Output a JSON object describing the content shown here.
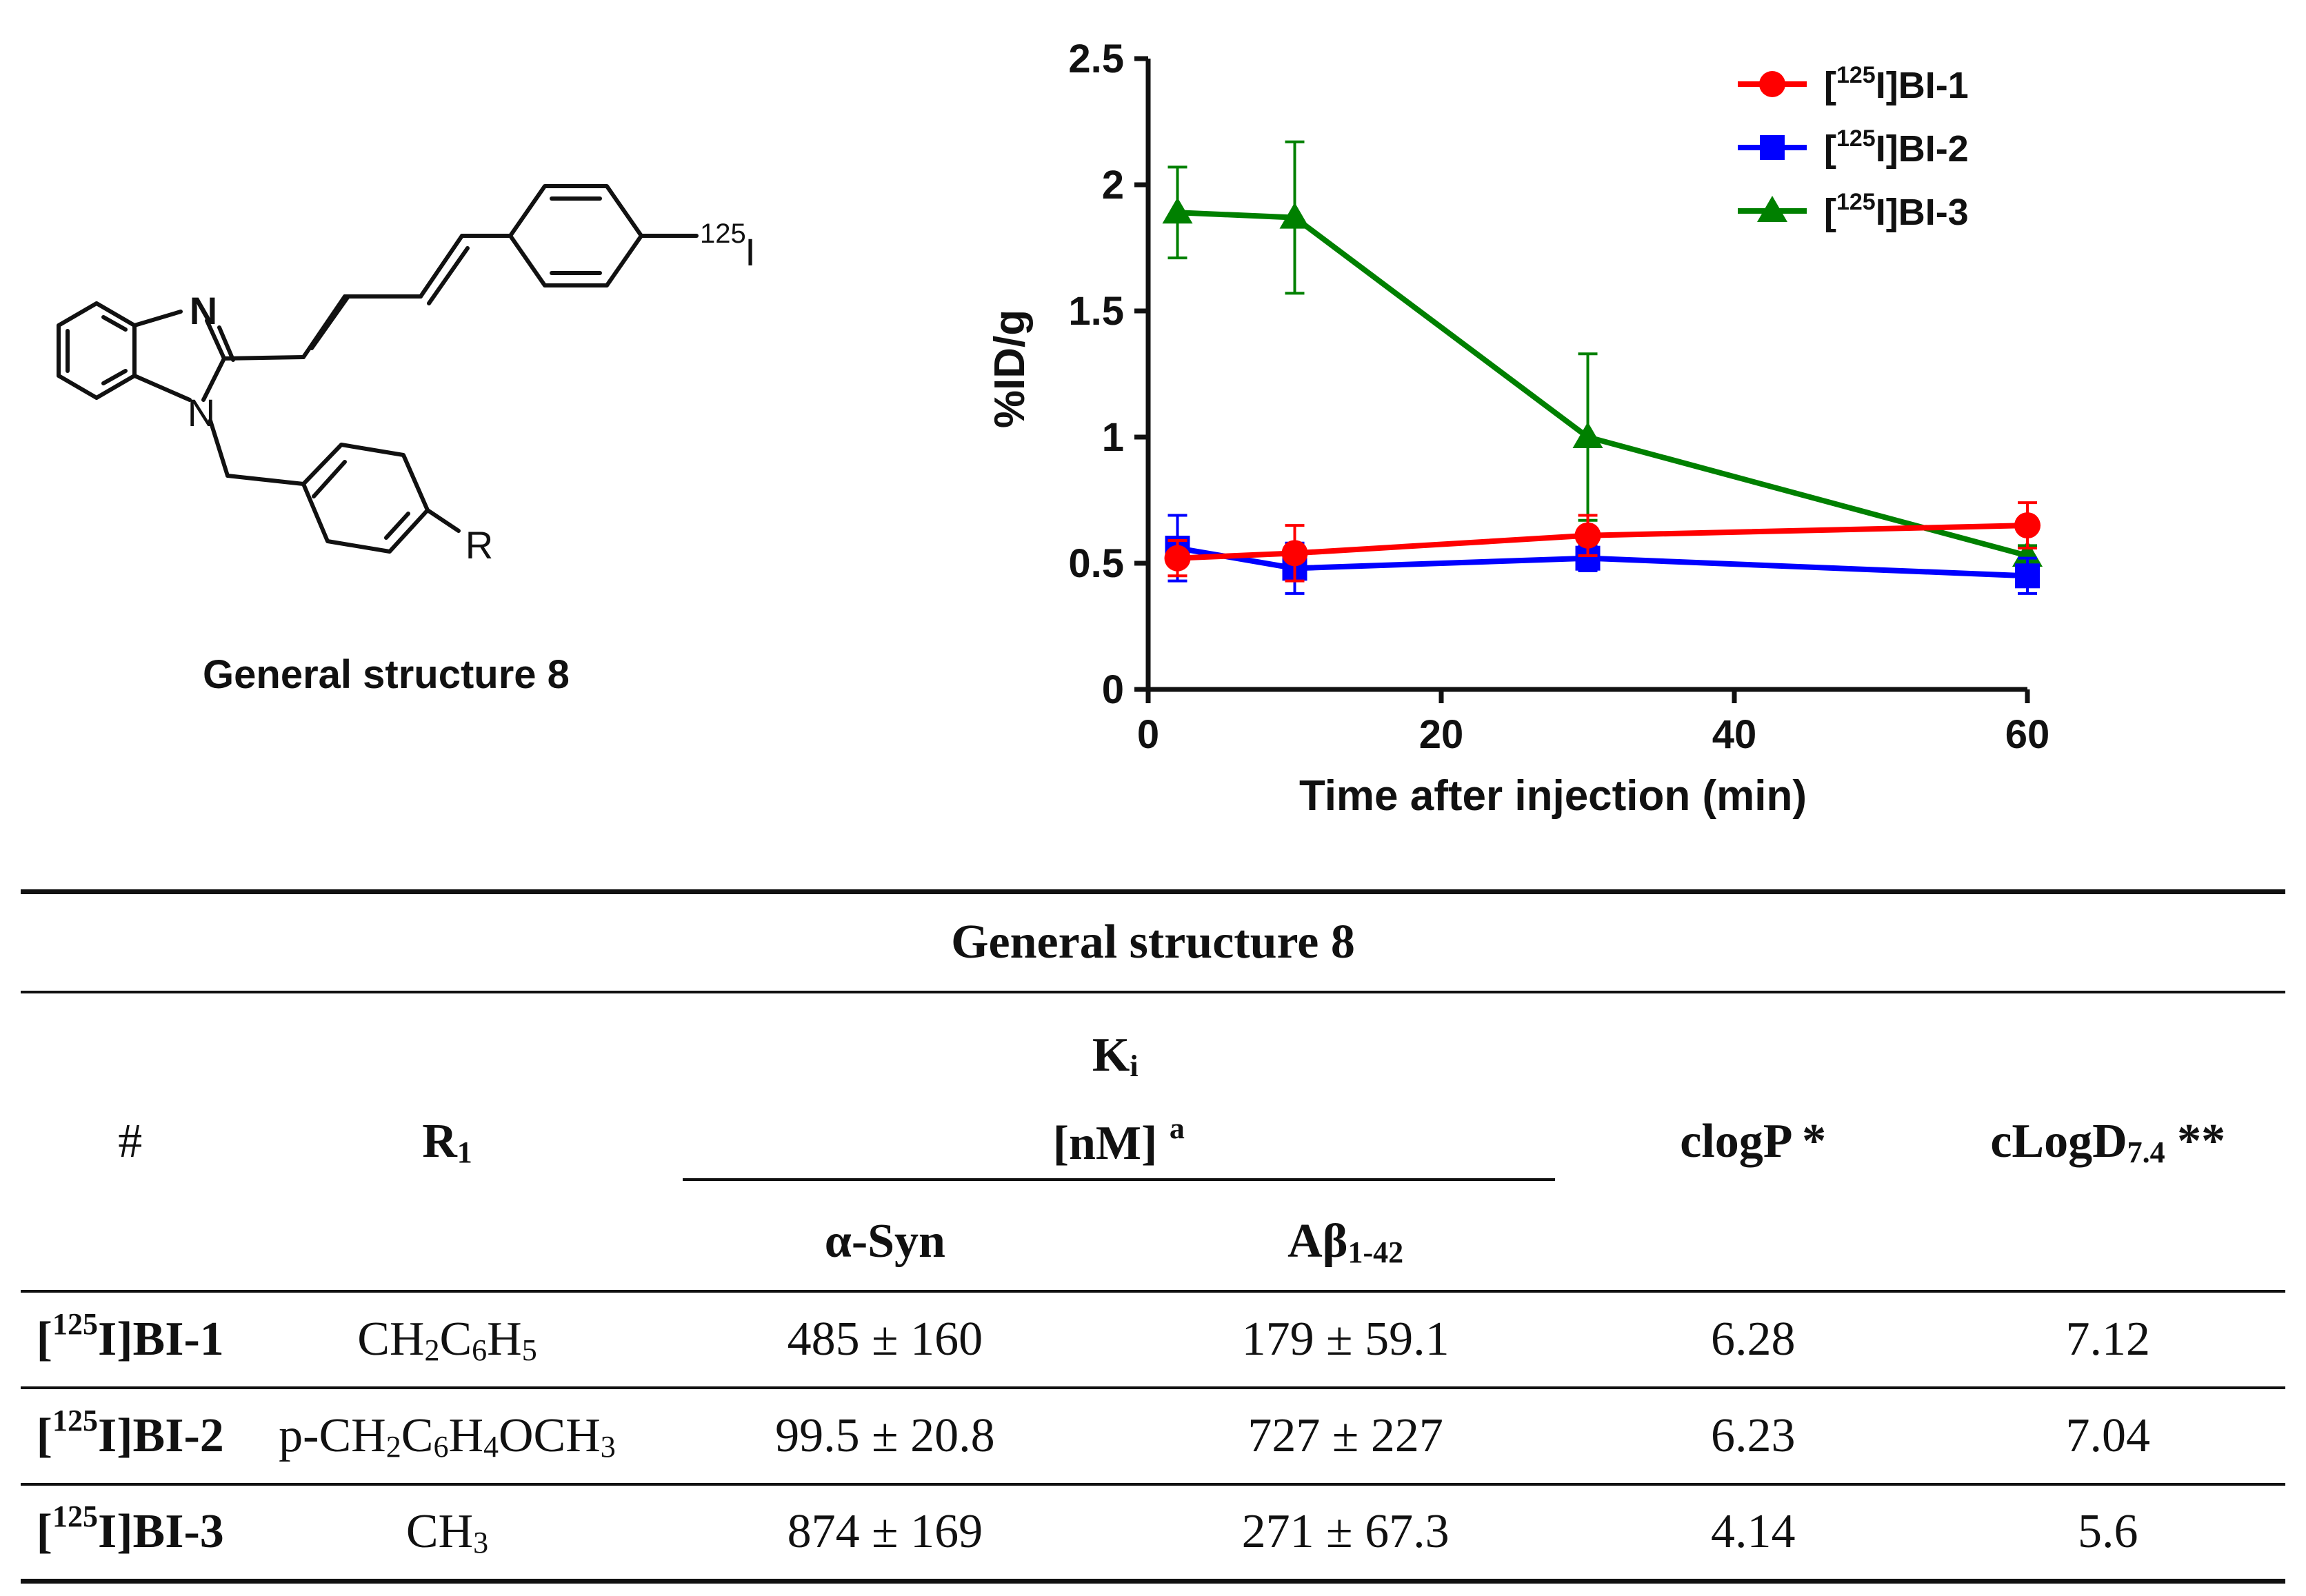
{
  "structure": {
    "caption": "General structure 8",
    "atom_labels": {
      "n1": "N",
      "n2": "N",
      "r": "R",
      "iso_mass": "125",
      "iso_elem": "I"
    }
  },
  "chart_data": {
    "type": "line",
    "title": "",
    "xlabel": "Time after injection (min)",
    "ylabel": "%ID/g",
    "xlim": [
      0,
      60
    ],
    "ylim": [
      0,
      2.5
    ],
    "xticks": [
      "0",
      "20",
      "40",
      "60"
    ],
    "xtick_values": [
      0,
      20,
      40,
      60
    ],
    "yticks": [
      "0",
      "0.5",
      "1",
      "1.5",
      "2",
      "2.5"
    ],
    "ytick_values": [
      0,
      0.5,
      1,
      1.5,
      2,
      2.5
    ],
    "grid": false,
    "legend_position": "top-right",
    "series": [
      {
        "name_sup": "125",
        "name_pre": "[",
        "name_post": "I]BI-1",
        "color": "#ff0000",
        "marker": "circle",
        "x": [
          2,
          10,
          30,
          60
        ],
        "y": [
          0.52,
          0.54,
          0.61,
          0.65
        ],
        "err": [
          0.07,
          0.11,
          0.08,
          0.09
        ]
      },
      {
        "name_sup": "125",
        "name_pre": "[",
        "name_post": "I]BI-2",
        "color": "#0000ff",
        "marker": "square",
        "x": [
          2,
          10,
          30,
          60
        ],
        "y": [
          0.56,
          0.48,
          0.52,
          0.45
        ],
        "err": [
          0.13,
          0.1,
          0.05,
          0.07
        ]
      },
      {
        "name_sup": "125",
        "name_pre": "[",
        "name_post": "I]BI-3",
        "color": "#008000",
        "marker": "triangle",
        "x": [
          2,
          10,
          30,
          60
        ],
        "y": [
          1.89,
          1.87,
          1.0,
          0.53
        ],
        "err": [
          0.18,
          0.3,
          0.33,
          0.04
        ]
      }
    ]
  },
  "table": {
    "caption": "General structure 8",
    "headers": {
      "num": "#",
      "r_main": "R",
      "r_sub": "1",
      "ki_main": "K",
      "ki_sub": "i",
      "nm": "[nM]",
      "nm_sup": "a",
      "asyn": "α-Syn",
      "abeta_main": "Aβ",
      "abeta_sub": "1-42",
      "clogp": "clogP *",
      "clogd_main": "cLogD",
      "clogd_sub": "7.4",
      "clogd_post": " **"
    },
    "rows": [
      {
        "id_pre": "[",
        "id_sup": "125",
        "id_post": "I]BI-1",
        "r_parts": [
          "CH",
          "2",
          "C",
          "6",
          "H",
          "5",
          "",
          "",
          ""
        ],
        "asyn": "485 ± 160",
        "abeta": "179 ± 59.1",
        "clogp": "6.28",
        "clogd": "7.12"
      },
      {
        "id_pre": "[",
        "id_sup": "125",
        "id_post": "I]BI-2",
        "r_parts": [
          "p-CH",
          "2",
          "C",
          "6",
          "H",
          "4",
          "OCH",
          "3",
          ""
        ],
        "asyn": "99.5 ± 20.8",
        "abeta": "727 ± 227",
        "clogp": "6.23",
        "clogd": "7.04"
      },
      {
        "id_pre": "[",
        "id_sup": "125",
        "id_post": "I]BI-3",
        "r_parts": [
          "CH",
          "3",
          "",
          "",
          "",
          "",
          "",
          "",
          ""
        ],
        "asyn": "874 ± 169",
        "abeta": "271 ± 67.3",
        "clogp": "4.14",
        "clogd": "5.6"
      }
    ]
  }
}
